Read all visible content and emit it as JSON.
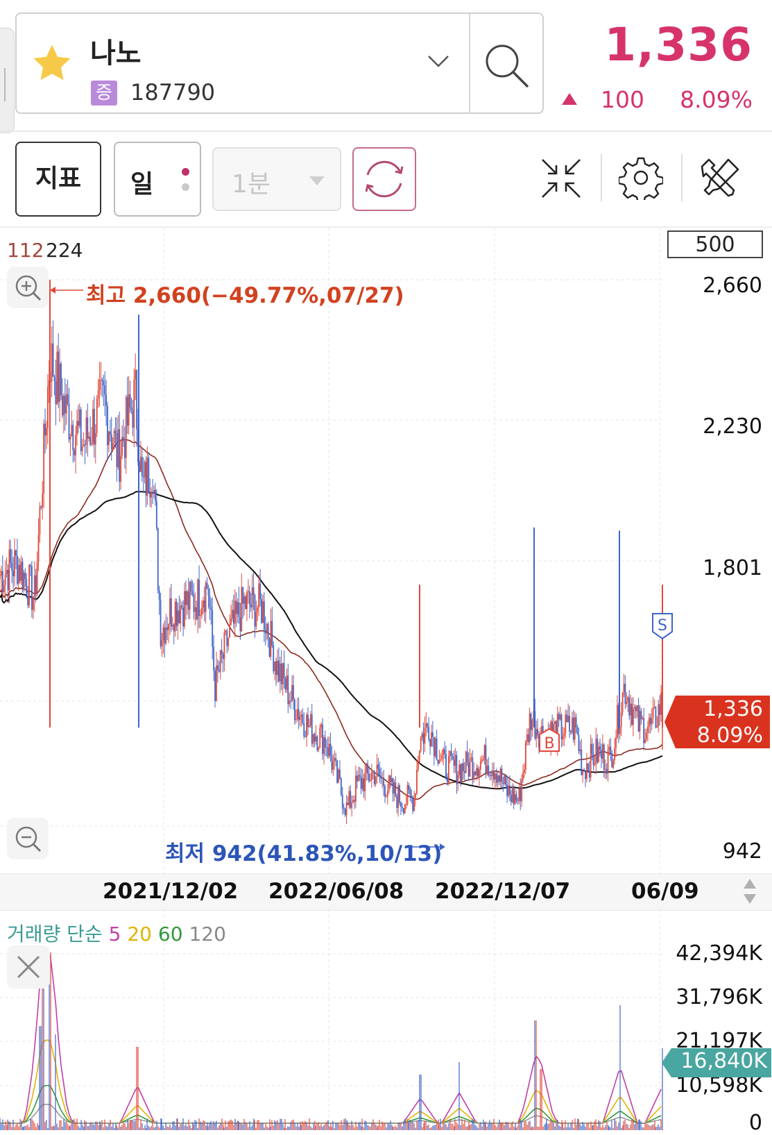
{
  "header": {
    "stock_name": "나노",
    "market_badge": "증",
    "stock_code": "187790",
    "price": "1,336",
    "change": "100",
    "change_pct": "8.09%"
  },
  "toolbar": {
    "indicator_label": "지표",
    "period_label": "일",
    "minute_label": "1분"
  },
  "main_chart": {
    "ma_legend_a": "112",
    "ma_legend_b": "224",
    "count_box": "500",
    "y_axis": [
      "2,660",
      "2,230",
      "1,801",
      "942"
    ],
    "high_label": "최고 2,660(−49.77%,07/27)",
    "low_label": "최저 942(41.83%,10/13)",
    "buy_marker": "B",
    "sell_marker": "S",
    "current_price_tag": "1,336",
    "current_pct_tag": "8.09%",
    "x_axis": [
      "2021/12/02",
      "2022/06/08",
      "2022/12/07",
      "06/09"
    ]
  },
  "volume": {
    "legend": {
      "title": "거래량 단순",
      "ma5": "5",
      "ma20": "20",
      "ma60": "60",
      "ma120": "120"
    },
    "y_axis": [
      "42,394K",
      "31,796K",
      "21,197K",
      "10,598K",
      "0"
    ],
    "current_tag": "16,840K"
  },
  "colors": {
    "accent": "#d6336c",
    "up": "#e0483a",
    "down": "#3f64c8",
    "ma_long": "#111111",
    "ma_mid": "#8b2a1e",
    "volume_tag": "#4aa6a0",
    "price_tag": "#d9331f"
  },
  "icons": [
    "star-icon",
    "chevron-down-icon",
    "search-icon",
    "refresh-icon",
    "collapse-icon",
    "gear-icon",
    "tools-icon",
    "zoom-in-icon",
    "zoom-out-icon",
    "close-icon"
  ]
}
